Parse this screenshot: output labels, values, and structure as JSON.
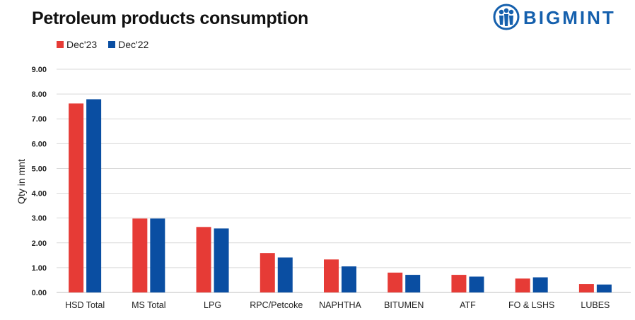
{
  "header": {
    "title": "Petroleum products consumption"
  },
  "logo": {
    "text": "BIGMINT",
    "icon": "people-logo-icon"
  },
  "colors": {
    "dec23": "#e63b36",
    "dec22": "#0a4ea2",
    "grid": "#d9d9d9",
    "logo": "#1560ad"
  },
  "chart_data": {
    "type": "bar",
    "title": "Petroleum products consumption",
    "xlabel": "",
    "ylabel": "Qty in mnt",
    "ylim": [
      0,
      9
    ],
    "yticks": [
      "0.00",
      "1.00",
      "2.00",
      "3.00",
      "4.00",
      "5.00",
      "6.00",
      "7.00",
      "8.00",
      "9.00"
    ],
    "grid": true,
    "legend": "top-left",
    "categories": [
      "HSD Total",
      "MS Total",
      "LPG",
      "RPC/Petcoke",
      "NAPHTHA",
      "BITUMEN",
      "ATF",
      "FO & LSHS",
      "LUBES"
    ],
    "series": [
      {
        "name": "Dec'23",
        "values": [
          7.62,
          2.98,
          2.64,
          1.59,
          1.33,
          0.8,
          0.71,
          0.56,
          0.34
        ]
      },
      {
        "name": "Dec'22",
        "values": [
          7.79,
          2.98,
          2.58,
          1.41,
          1.05,
          0.71,
          0.64,
          0.61,
          0.32
        ]
      }
    ]
  }
}
